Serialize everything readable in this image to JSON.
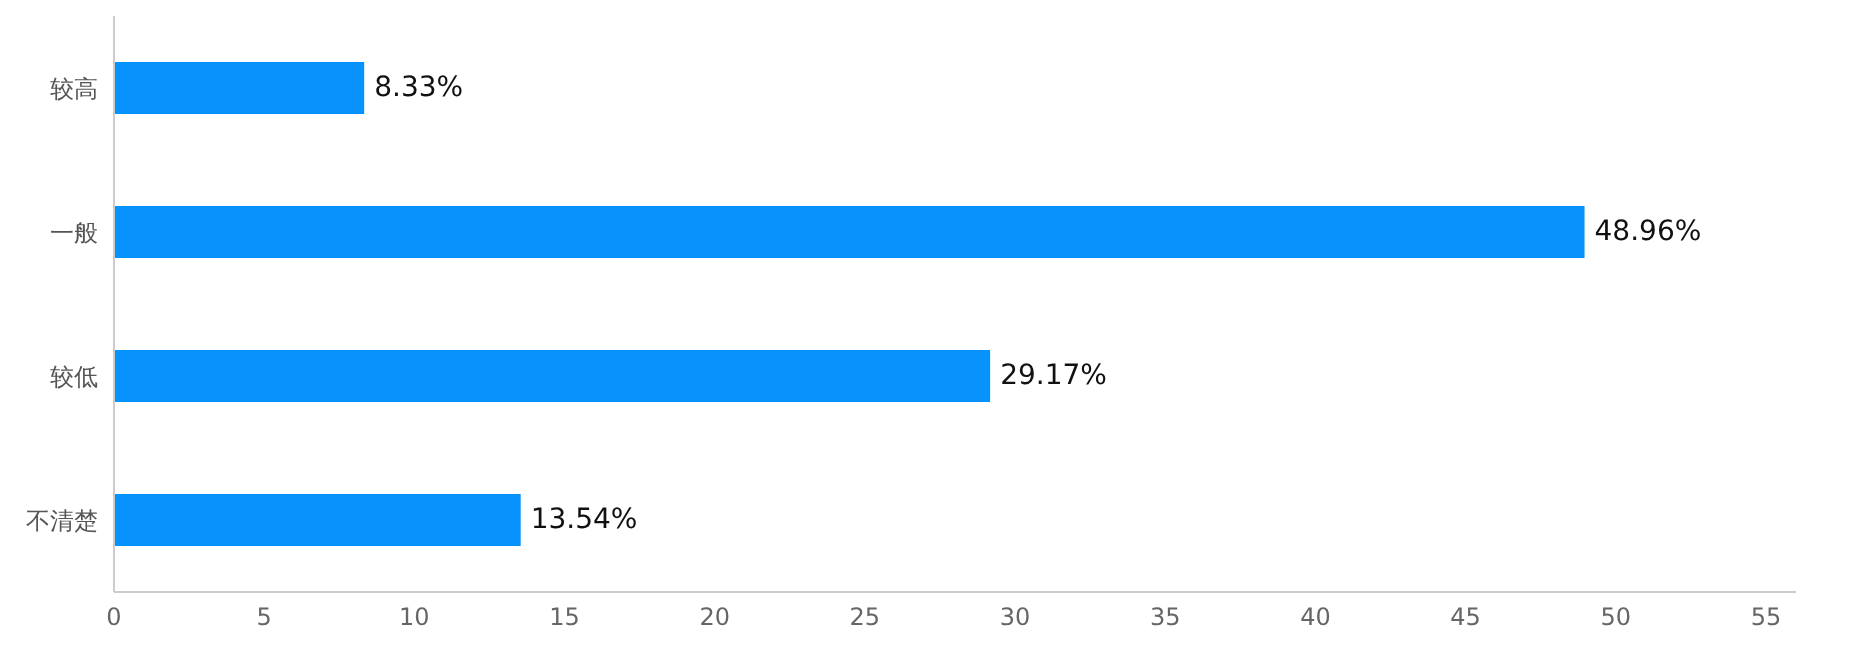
{
  "chart_data": {
    "type": "bar",
    "orientation": "horizontal",
    "categories": [
      "较高",
      "一般",
      "较低",
      "不清楚"
    ],
    "values": [
      8.33,
      48.96,
      29.17,
      13.54
    ],
    "color": "#0892fb",
    "value_labels": [
      "8.33%",
      "48.96%",
      "29.17%",
      "13.54%"
    ],
    "xlim": [
      0,
      56
    ],
    "xticks": [
      0,
      5,
      10,
      15,
      20,
      25,
      30,
      35,
      40,
      45,
      50,
      55
    ],
    "grid": false,
    "legend": false
  }
}
